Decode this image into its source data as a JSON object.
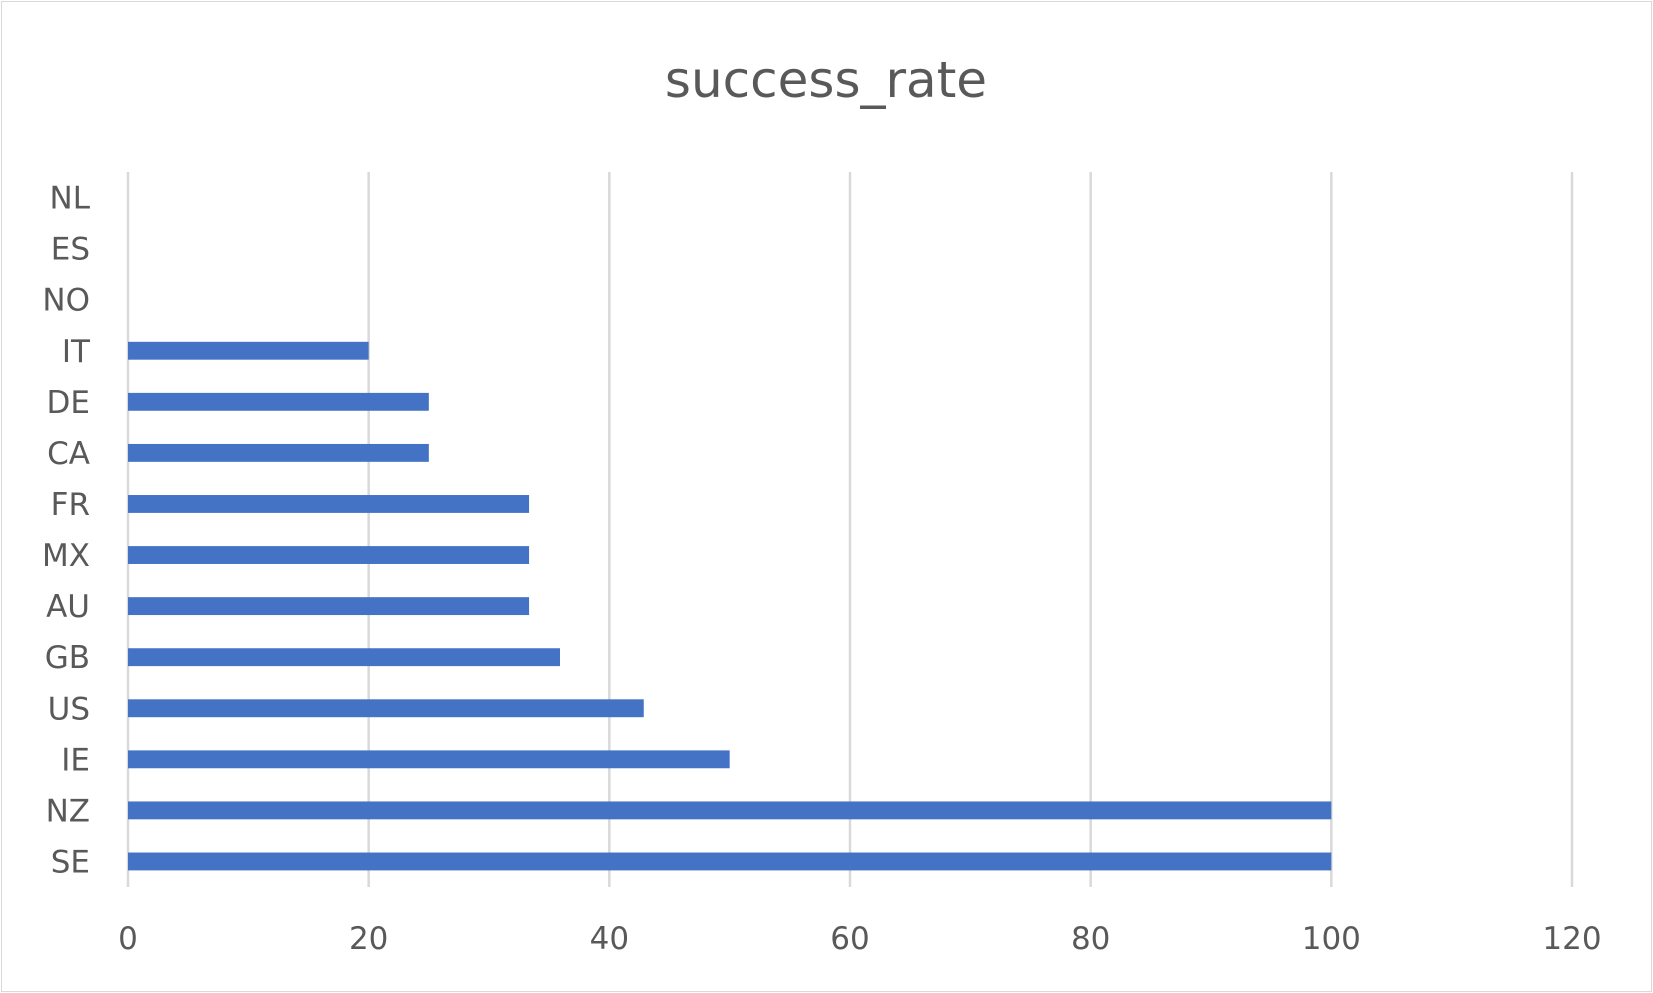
{
  "chart_data": {
    "type": "bar",
    "orientation": "horizontal",
    "title": "success_rate",
    "xlabel": "",
    "ylabel": "",
    "categories": [
      "SE",
      "NZ",
      "IE",
      "US",
      "GB",
      "AU",
      "MX",
      "FR",
      "CA",
      "DE",
      "IT",
      "NO",
      "ES",
      "NL"
    ],
    "series": [
      {
        "name": "success_rate",
        "values": [
          100,
          100,
          50,
          42.86,
          35.9,
          33.33,
          33.33,
          33.33,
          25,
          25,
          20,
          0,
          0,
          0
        ]
      }
    ],
    "xlim": [
      0,
      120
    ],
    "xticks": [
      0,
      20,
      40,
      60,
      80,
      100,
      120
    ],
    "grid": "vertical",
    "legend": "none",
    "colors": {
      "bar": "#4472c4",
      "grid": "#d9d9d9",
      "text": "#595959",
      "border": "#d9d9d9"
    }
  }
}
